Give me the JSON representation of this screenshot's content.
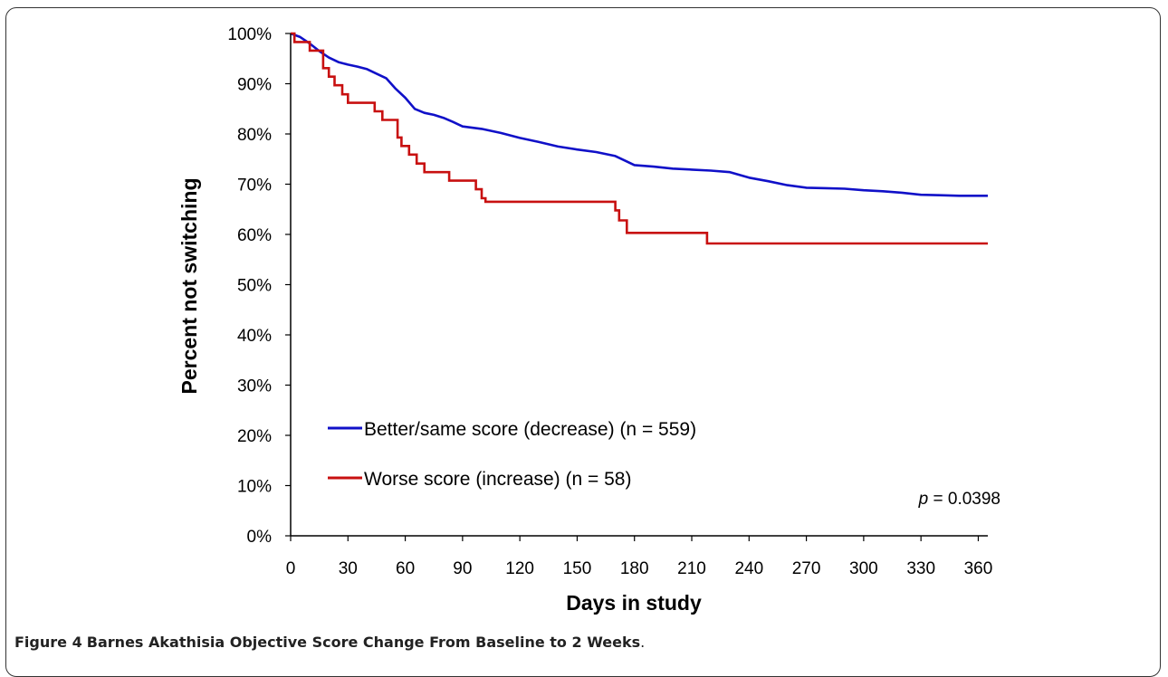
{
  "chart_data": {
    "type": "line",
    "subtype": "step survival curve",
    "xlabel": "Days in study",
    "ylabel": "Percent not switching",
    "xlim": [
      0,
      365
    ],
    "ylim": [
      0,
      100
    ],
    "x_ticks": [
      "0",
      "30",
      "60",
      "90",
      "120",
      "150",
      "180",
      "210",
      "240",
      "270",
      "300",
      "330",
      "360"
    ],
    "x_tick_values": [
      0,
      30,
      60,
      90,
      120,
      150,
      180,
      210,
      240,
      270,
      300,
      330,
      360
    ],
    "y_ticks": [
      "0%",
      "10%",
      "20%",
      "30%",
      "40%",
      "50%",
      "60%",
      "70%",
      "80%",
      "90%",
      "100%"
    ],
    "y_tick_values": [
      0,
      10,
      20,
      30,
      40,
      50,
      60,
      70,
      80,
      90,
      100
    ],
    "grid": false,
    "legend_position": "bottom-left",
    "series": [
      {
        "name": "Better/same score (decrease) (n = 559)",
        "color": "#1010c8",
        "points": [
          [
            0,
            100
          ],
          [
            5,
            99.3
          ],
          [
            10,
            98
          ],
          [
            15,
            96.5
          ],
          [
            20,
            95.2
          ],
          [
            25,
            94.3
          ],
          [
            30,
            93.8
          ],
          [
            35,
            93.4
          ],
          [
            40,
            92.9
          ],
          [
            45,
            92
          ],
          [
            50,
            91.1
          ],
          [
            55,
            89
          ],
          [
            60,
            87.2
          ],
          [
            65,
            85
          ],
          [
            70,
            84.2
          ],
          [
            75,
            83.8
          ],
          [
            80,
            83.2
          ],
          [
            85,
            82.4
          ],
          [
            90,
            81.5
          ],
          [
            100,
            81
          ],
          [
            110,
            80.2
          ],
          [
            120,
            79.2
          ],
          [
            130,
            78.4
          ],
          [
            140,
            77.5
          ],
          [
            150,
            76.9
          ],
          [
            160,
            76.4
          ],
          [
            170,
            75.6
          ],
          [
            175,
            74.7
          ],
          [
            180,
            73.8
          ],
          [
            190,
            73.5
          ],
          [
            200,
            73.1
          ],
          [
            210,
            72.9
          ],
          [
            220,
            72.7
          ],
          [
            230,
            72.4
          ],
          [
            240,
            71.3
          ],
          [
            250,
            70.6
          ],
          [
            260,
            69.8
          ],
          [
            270,
            69.3
          ],
          [
            280,
            69.2
          ],
          [
            290,
            69.1
          ],
          [
            300,
            68.8
          ],
          [
            310,
            68.6
          ],
          [
            320,
            68.3
          ],
          [
            330,
            67.9
          ],
          [
            340,
            67.8
          ],
          [
            350,
            67.7
          ],
          [
            365,
            67.7
          ]
        ]
      },
      {
        "name": "Worse score (increase) (n = 58)",
        "color": "#c81010",
        "steps": [
          [
            0,
            100
          ],
          [
            2,
            98.3
          ],
          [
            10,
            96.6
          ],
          [
            17,
            93.1
          ],
          [
            20,
            91.4
          ],
          [
            23,
            89.7
          ],
          [
            27,
            87.9
          ],
          [
            30,
            86.2
          ],
          [
            44,
            84.5
          ],
          [
            48,
            82.8
          ],
          [
            56,
            79.3
          ],
          [
            58,
            77.6
          ],
          [
            62,
            75.9
          ],
          [
            66,
            74.1
          ],
          [
            70,
            72.4
          ],
          [
            83,
            70.7
          ],
          [
            97,
            69
          ],
          [
            100,
            67.2
          ],
          [
            102,
            66.5
          ],
          [
            170,
            64.8
          ],
          [
            172,
            62.8
          ],
          [
            176,
            60.3
          ],
          [
            218,
            58.2
          ],
          [
            365,
            58.2
          ]
        ]
      }
    ],
    "annotations": [
      {
        "label": "p",
        "text": " = 0.0398"
      }
    ]
  },
  "caption": {
    "label": "Figure 4",
    "title": "Barnes Akathisia Objective Score Change From Baseline to 2 Weeks",
    "period": "."
  }
}
